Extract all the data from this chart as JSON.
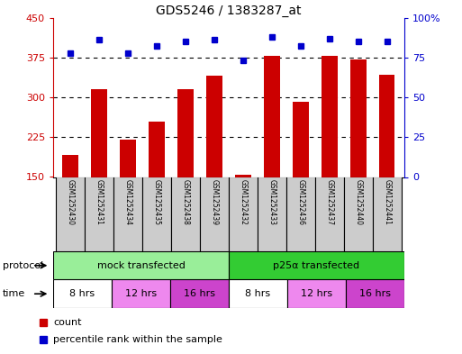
{
  "title": "GDS5246 / 1383287_at",
  "samples": [
    "GSM1252430",
    "GSM1252431",
    "GSM1252434",
    "GSM1252435",
    "GSM1252438",
    "GSM1252439",
    "GSM1252432",
    "GSM1252433",
    "GSM1252436",
    "GSM1252437",
    "GSM1252440",
    "GSM1252441"
  ],
  "counts": [
    192,
    315,
    220,
    255,
    315,
    340,
    155,
    378,
    292,
    378,
    372,
    342
  ],
  "percentiles": [
    78,
    86,
    78,
    82,
    85,
    86,
    73,
    88,
    82,
    87,
    85,
    85
  ],
  "ylim_left": [
    150,
    450
  ],
  "ylim_right": [
    0,
    100
  ],
  "yticks_left": [
    150,
    225,
    300,
    375,
    450
  ],
  "yticks_right": [
    0,
    25,
    50,
    75,
    100
  ],
  "hlines": [
    225,
    300,
    375
  ],
  "bar_color": "#cc0000",
  "dot_color": "#0000cc",
  "bg_color": "#ffffff",
  "plot_bg": "#ffffff",
  "protocol_groups": [
    {
      "label": "mock transfected",
      "start": 0,
      "end": 6,
      "color": "#99ee99"
    },
    {
      "label": "p25α transfected",
      "start": 6,
      "end": 12,
      "color": "#33cc33"
    }
  ],
  "time_groups": [
    {
      "label": "8 hrs",
      "start": 0,
      "end": 2,
      "color": "#ffffff"
    },
    {
      "label": "12 hrs",
      "start": 2,
      "end": 4,
      "color": "#ee88ee"
    },
    {
      "label": "16 hrs",
      "start": 4,
      "end": 6,
      "color": "#cc44cc"
    },
    {
      "label": "8 hrs",
      "start": 6,
      "end": 8,
      "color": "#ffffff"
    },
    {
      "label": "12 hrs",
      "start": 8,
      "end": 10,
      "color": "#ee88ee"
    },
    {
      "label": "16 hrs",
      "start": 10,
      "end": 12,
      "color": "#cc44cc"
    }
  ],
  "legend_items": [
    {
      "label": "count",
      "color": "#cc0000"
    },
    {
      "label": "percentile rank within the sample",
      "color": "#0000cc"
    }
  ],
  "left_axis_color": "#cc0000",
  "right_axis_color": "#0000cc",
  "grid_color": "#000000",
  "sample_box_color": "#cccccc",
  "protocol_label": "protocol",
  "time_label": "time",
  "right_tick_labels": [
    "0",
    "25",
    "50",
    "75",
    "100%"
  ]
}
